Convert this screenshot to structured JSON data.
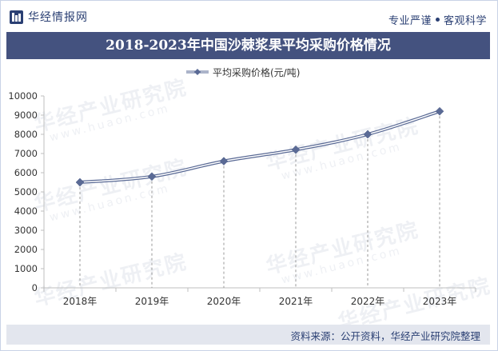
{
  "header": {
    "brand": "华经情报网",
    "slogan_left": "专业严谨",
    "slogan_right": "客观科学"
  },
  "title": "2018-2023年中国沙棘浆果平均采购价格情况",
  "watermark": {
    "text": "华经产业研究院",
    "url": "www.huaon.com"
  },
  "chart_data": {
    "type": "line",
    "categories": [
      "2018年",
      "2019年",
      "2020年",
      "2021年",
      "2022年",
      "2023年"
    ],
    "series": [
      {
        "name": "平均采购价格(元/吨)",
        "values": [
          5500,
          5800,
          6600,
          7200,
          8000,
          9200
        ]
      }
    ],
    "ylim": [
      0,
      10000
    ],
    "yticks": [
      0,
      1000,
      2000,
      3000,
      4000,
      5000,
      6000,
      7000,
      8000,
      9000,
      10000
    ],
    "xlabel": "",
    "ylabel": "",
    "legend_position": "top-center",
    "grid": false,
    "drop_lines": true,
    "line_color": "#5a6a95",
    "marker": "diamond"
  },
  "footer": {
    "source": "资料来源：公开资料，华经产业研究院整理"
  }
}
